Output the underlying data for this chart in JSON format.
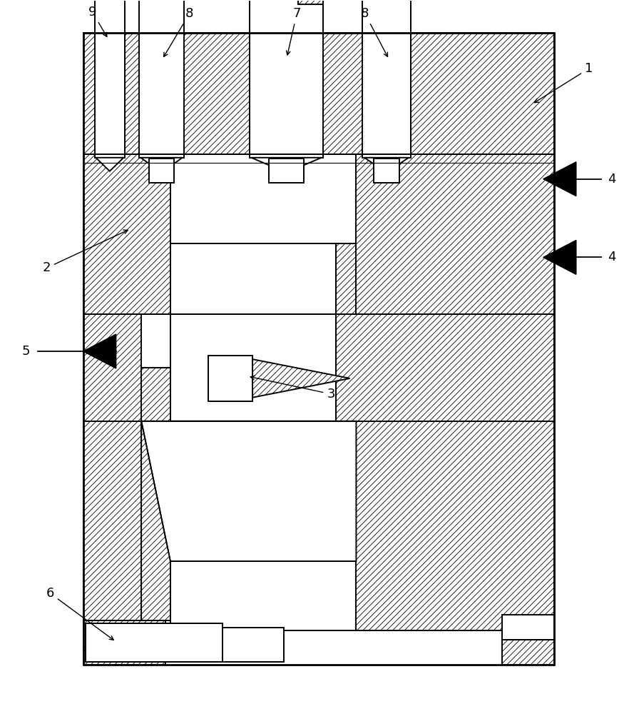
{
  "bg": "#ffffff",
  "lc": "#000000",
  "lw_main": 1.4,
  "lw_thin": 0.8,
  "hatch": "////",
  "label_fs": 13,
  "fig_w": 8.89,
  "fig_h": 10.0
}
